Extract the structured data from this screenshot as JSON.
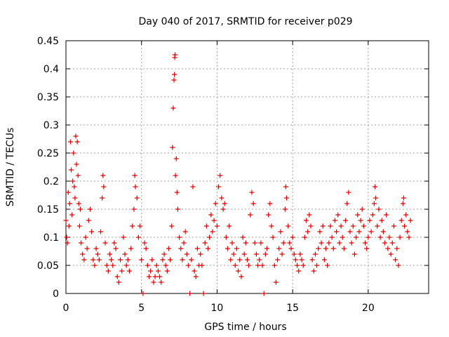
{
  "chart_data": {
    "type": "scatter",
    "title": "Day 040 of 2017, SRMTID for receiver p029",
    "xlabel": "GPS time / hours",
    "ylabel": "SRMTID / TECUs",
    "xlim": [
      0,
      24
    ],
    "ylim": [
      0,
      0.45
    ],
    "x_ticks": [
      0,
      5,
      10,
      15,
      20
    ],
    "y_ticks": [
      0,
      0.05,
      0.1,
      0.15,
      0.2,
      0.25,
      0.3,
      0.35,
      0.4,
      0.45
    ],
    "x_tick_labels": [
      "0",
      "5",
      "10",
      "15",
      "20"
    ],
    "y_tick_labels": [
      "0",
      "0.05",
      "0.1",
      "0.15",
      "0.2",
      "0.25",
      "0.3",
      "0.35",
      "0.4",
      "0.45"
    ],
    "grid": true,
    "marker": "+",
    "series": [
      {
        "name": "SRMTID",
        "color": "#e00000",
        "points": [
          [
            0.0,
            0.13
          ],
          [
            0.05,
            0.1
          ],
          [
            0.1,
            0.09
          ],
          [
            0.15,
            0.18
          ],
          [
            0.2,
            0.12
          ],
          [
            0.25,
            0.16
          ],
          [
            0.3,
            0.27
          ],
          [
            0.35,
            0.22
          ],
          [
            0.4,
            0.14
          ],
          [
            0.45,
            0.2
          ],
          [
            0.5,
            0.25
          ],
          [
            0.55,
            0.19
          ],
          [
            0.6,
            0.17
          ],
          [
            0.65,
            0.28
          ],
          [
            0.7,
            0.23
          ],
          [
            0.75,
            0.27
          ],
          [
            0.8,
            0.21
          ],
          [
            0.85,
            0.16
          ],
          [
            0.9,
            0.12
          ],
          [
            0.95,
            0.15
          ],
          [
            1.0,
            0.09
          ],
          [
            1.1,
            0.07
          ],
          [
            1.2,
            0.06
          ],
          [
            1.3,
            0.1
          ],
          [
            1.4,
            0.08
          ],
          [
            1.5,
            0.13
          ],
          [
            1.6,
            0.15
          ],
          [
            1.7,
            0.11
          ],
          [
            1.8,
            0.06
          ],
          [
            1.9,
            0.05
          ],
          [
            2.0,
            0.08
          ],
          [
            2.1,
            0.07
          ],
          [
            2.2,
            0.06
          ],
          [
            2.3,
            0.11
          ],
          [
            2.4,
            0.17
          ],
          [
            2.45,
            0.21
          ],
          [
            2.5,
            0.19
          ],
          [
            2.6,
            0.09
          ],
          [
            2.7,
            0.05
          ],
          [
            2.8,
            0.04
          ],
          [
            2.9,
            0.07
          ],
          [
            3.0,
            0.06
          ],
          [
            3.1,
            0.05
          ],
          [
            3.2,
            0.09
          ],
          [
            3.3,
            0.08
          ],
          [
            3.4,
            0.03
          ],
          [
            3.5,
            0.02
          ],
          [
            3.6,
            0.06
          ],
          [
            3.7,
            0.04
          ],
          [
            3.8,
            0.1
          ],
          [
            3.9,
            0.07
          ],
          [
            4.0,
            0.05
          ],
          [
            4.1,
            0.06
          ],
          [
            4.2,
            0.04
          ],
          [
            4.3,
            0.08
          ],
          [
            4.4,
            0.12
          ],
          [
            4.5,
            0.15
          ],
          [
            4.55,
            0.21
          ],
          [
            4.6,
            0.19
          ],
          [
            4.7,
            0.17
          ],
          [
            4.8,
            0.1
          ],
          [
            4.9,
            0.12
          ],
          [
            5.0,
            0.06
          ],
          [
            5.1,
            0.0
          ],
          [
            5.2,
            0.09
          ],
          [
            5.3,
            0.08
          ],
          [
            5.4,
            0.05
          ],
          [
            5.5,
            0.03
          ],
          [
            5.6,
            0.04
          ],
          [
            5.7,
            0.06
          ],
          [
            5.8,
            0.02
          ],
          [
            5.9,
            0.03
          ],
          [
            6.0,
            0.05
          ],
          [
            6.1,
            0.04
          ],
          [
            6.2,
            0.03
          ],
          [
            6.3,
            0.02
          ],
          [
            6.4,
            0.06
          ],
          [
            6.5,
            0.07
          ],
          [
            6.6,
            0.05
          ],
          [
            6.7,
            0.04
          ],
          [
            6.8,
            0.08
          ],
          [
            6.9,
            0.06
          ],
          [
            7.0,
            0.12
          ],
          [
            7.05,
            0.26
          ],
          [
            7.1,
            0.33
          ],
          [
            7.15,
            0.38
          ],
          [
            7.18,
            0.39
          ],
          [
            7.2,
            0.42
          ],
          [
            7.22,
            0.425
          ],
          [
            7.25,
            0.21
          ],
          [
            7.3,
            0.24
          ],
          [
            7.35,
            0.18
          ],
          [
            7.4,
            0.15
          ],
          [
            7.5,
            0.1
          ],
          [
            7.6,
            0.08
          ],
          [
            7.7,
            0.06
          ],
          [
            7.8,
            0.09
          ],
          [
            7.9,
            0.11
          ],
          [
            8.0,
            0.07
          ],
          [
            8.1,
            0.05
          ],
          [
            8.2,
            0.0
          ],
          [
            8.3,
            0.06
          ],
          [
            8.4,
            0.19
          ],
          [
            8.5,
            0.04
          ],
          [
            8.6,
            0.03
          ],
          [
            8.7,
            0.08
          ],
          [
            8.8,
            0.05
          ],
          [
            8.9,
            0.07
          ],
          [
            9.0,
            0.05
          ],
          [
            9.1,
            0.0
          ],
          [
            9.2,
            0.09
          ],
          [
            9.3,
            0.12
          ],
          [
            9.4,
            0.08
          ],
          [
            9.5,
            0.1
          ],
          [
            9.6,
            0.14
          ],
          [
            9.7,
            0.11
          ],
          [
            9.8,
            0.13
          ],
          [
            9.9,
            0.16
          ],
          [
            10.0,
            0.12
          ],
          [
            10.1,
            0.19
          ],
          [
            10.2,
            0.21
          ],
          [
            10.3,
            0.17
          ],
          [
            10.4,
            0.15
          ],
          [
            10.5,
            0.16
          ],
          [
            10.6,
            0.1
          ],
          [
            10.7,
            0.08
          ],
          [
            10.8,
            0.12
          ],
          [
            10.9,
            0.06
          ],
          [
            11.0,
            0.09
          ],
          [
            11.1,
            0.07
          ],
          [
            11.2,
            0.05
          ],
          [
            11.3,
            0.08
          ],
          [
            11.4,
            0.04
          ],
          [
            11.5,
            0.06
          ],
          [
            11.6,
            0.03
          ],
          [
            11.7,
            0.1
          ],
          [
            11.8,
            0.07
          ],
          [
            11.9,
            0.09
          ],
          [
            12.0,
            0.06
          ],
          [
            12.1,
            0.05
          ],
          [
            12.2,
            0.14
          ],
          [
            12.3,
            0.18
          ],
          [
            12.4,
            0.16
          ],
          [
            12.5,
            0.09
          ],
          [
            12.6,
            0.07
          ],
          [
            12.7,
            0.05
          ],
          [
            12.8,
            0.06
          ],
          [
            12.9,
            0.09
          ],
          [
            13.0,
            0.05
          ],
          [
            13.1,
            0.0
          ],
          [
            13.2,
            0.07
          ],
          [
            13.3,
            0.08
          ],
          [
            13.4,
            0.14
          ],
          [
            13.5,
            0.16
          ],
          [
            13.6,
            0.12
          ],
          [
            13.7,
            0.1
          ],
          [
            13.8,
            0.05
          ],
          [
            13.9,
            0.02
          ],
          [
            14.0,
            0.06
          ],
          [
            14.1,
            0.08
          ],
          [
            14.2,
            0.11
          ],
          [
            14.3,
            0.07
          ],
          [
            14.4,
            0.09
          ],
          [
            14.5,
            0.15
          ],
          [
            14.55,
            0.19
          ],
          [
            14.6,
            0.17
          ],
          [
            14.7,
            0.12
          ],
          [
            14.8,
            0.09
          ],
          [
            14.9,
            0.08
          ],
          [
            15.0,
            0.1
          ],
          [
            15.1,
            0.07
          ],
          [
            15.2,
            0.06
          ],
          [
            15.3,
            0.05
          ],
          [
            15.4,
            0.04
          ],
          [
            15.5,
            0.07
          ],
          [
            15.6,
            0.06
          ],
          [
            15.7,
            0.05
          ],
          [
            15.8,
            0.1
          ],
          [
            15.9,
            0.13
          ],
          [
            16.0,
            0.11
          ],
          [
            16.1,
            0.14
          ],
          [
            16.2,
            0.12
          ],
          [
            16.3,
            0.06
          ],
          [
            16.4,
            0.04
          ],
          [
            16.5,
            0.07
          ],
          [
            16.6,
            0.05
          ],
          [
            16.7,
            0.08
          ],
          [
            16.8,
            0.11
          ],
          [
            16.9,
            0.09
          ],
          [
            17.0,
            0.12
          ],
          [
            17.1,
            0.06
          ],
          [
            17.2,
            0.08
          ],
          [
            17.3,
            0.05
          ],
          [
            17.4,
            0.09
          ],
          [
            17.5,
            0.12
          ],
          [
            17.6,
            0.1
          ],
          [
            17.7,
            0.08
          ],
          [
            17.8,
            0.13
          ],
          [
            17.9,
            0.11
          ],
          [
            18.0,
            0.14
          ],
          [
            18.1,
            0.09
          ],
          [
            18.2,
            0.12
          ],
          [
            18.3,
            0.1
          ],
          [
            18.4,
            0.08
          ],
          [
            18.5,
            0.13
          ],
          [
            18.6,
            0.16
          ],
          [
            18.7,
            0.18
          ],
          [
            18.8,
            0.11
          ],
          [
            18.9,
            0.09
          ],
          [
            19.0,
            0.12
          ],
          [
            19.1,
            0.07
          ],
          [
            19.2,
            0.1
          ],
          [
            19.3,
            0.14
          ],
          [
            19.4,
            0.11
          ],
          [
            19.5,
            0.13
          ],
          [
            19.6,
            0.15
          ],
          [
            19.7,
            0.12
          ],
          [
            19.8,
            0.09
          ],
          [
            19.9,
            0.08
          ],
          [
            20.0,
            0.1
          ],
          [
            20.1,
            0.13
          ],
          [
            20.2,
            0.11
          ],
          [
            20.3,
            0.14
          ],
          [
            20.4,
            0.16
          ],
          [
            20.45,
            0.19
          ],
          [
            20.5,
            0.17
          ],
          [
            20.6,
            0.12
          ],
          [
            20.7,
            0.15
          ],
          [
            20.8,
            0.1
          ],
          [
            20.9,
            0.13
          ],
          [
            21.0,
            0.11
          ],
          [
            21.1,
            0.09
          ],
          [
            21.2,
            0.14
          ],
          [
            21.3,
            0.08
          ],
          [
            21.4,
            0.1
          ],
          [
            21.5,
            0.07
          ],
          [
            21.6,
            0.09
          ],
          [
            21.7,
            0.12
          ],
          [
            21.8,
            0.06
          ],
          [
            21.9,
            0.08
          ],
          [
            22.0,
            0.05
          ],
          [
            22.1,
            0.1
          ],
          [
            22.2,
            0.13
          ],
          [
            22.3,
            0.16
          ],
          [
            22.35,
            0.17
          ],
          [
            22.4,
            0.12
          ],
          [
            22.5,
            0.14
          ],
          [
            22.6,
            0.11
          ],
          [
            22.7,
            0.1
          ],
          [
            22.8,
            0.13
          ]
        ]
      }
    ]
  }
}
